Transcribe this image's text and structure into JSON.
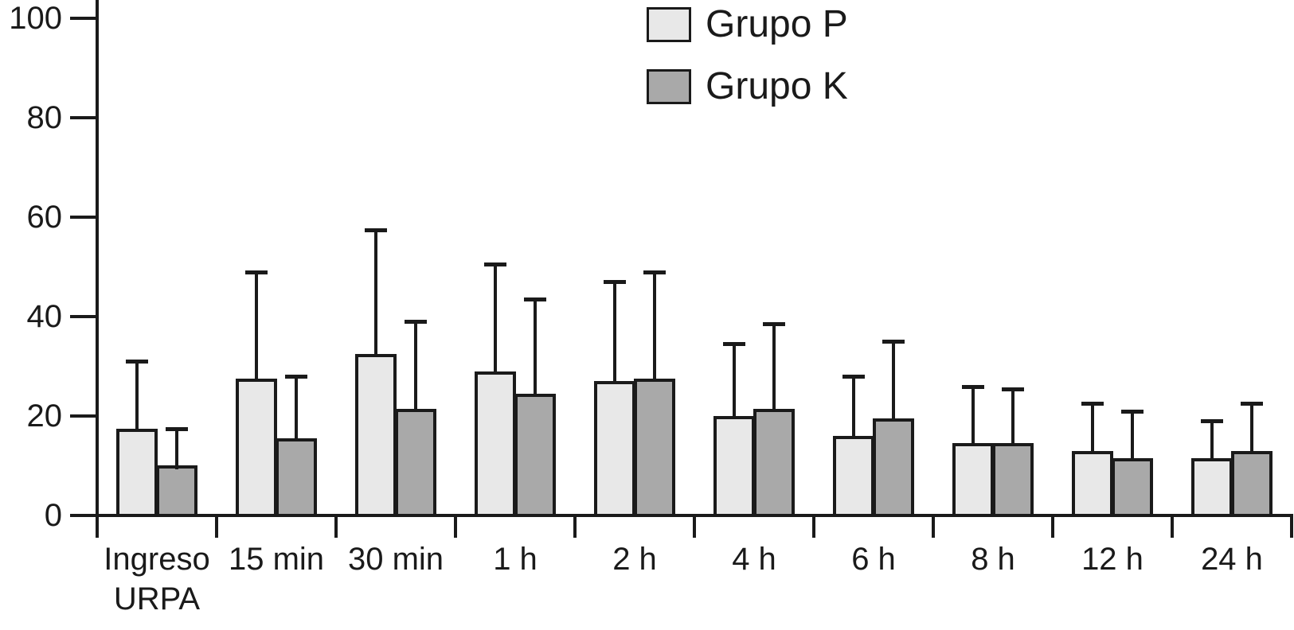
{
  "chart_data": {
    "type": "bar",
    "title": "",
    "xlabel": "",
    "ylabel": "",
    "ylim": [
      0,
      100
    ],
    "yticks": [
      0,
      20,
      40,
      60,
      80,
      100
    ],
    "grid": false,
    "legend_position": "top-center",
    "error_bars": "upper",
    "axis_color": "#1a1a1a",
    "background_color": "#ffffff",
    "categories": [
      "Ingreso\nURPA",
      "15 min",
      "30 min",
      "1 h",
      "2 h",
      "4 h",
      "6 h",
      "8 h",
      "12 h",
      "24 h"
    ],
    "series": [
      {
        "name": "Grupo P",
        "color": "#e8e8e8",
        "values": [
          17.5,
          27.5,
          32.5,
          29.0,
          27.0,
          20.0,
          16.0,
          14.5,
          13.0,
          11.5
        ],
        "error_upper": [
          13.5,
          21.5,
          25.0,
          21.5,
          20.0,
          14.5,
          12.0,
          11.5,
          9.5,
          7.5
        ]
      },
      {
        "name": "Grupo K",
        "color": "#a9a9a9",
        "values": [
          10.0,
          15.5,
          21.5,
          24.5,
          27.5,
          21.5,
          19.5,
          14.5,
          11.5,
          13.0
        ],
        "error_upper": [
          7.5,
          12.5,
          17.5,
          19.0,
          21.5,
          17.0,
          15.5,
          11.0,
          9.5,
          9.5
        ]
      }
    ]
  }
}
